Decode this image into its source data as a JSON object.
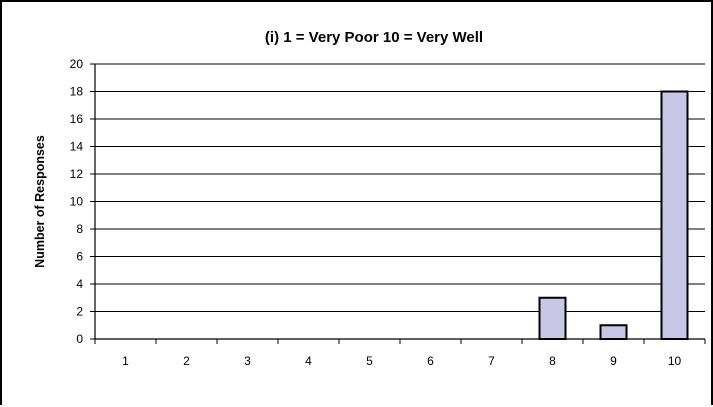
{
  "chart_data": {
    "type": "bar",
    "title": "(i)  1 = Very Poor    10 = Very Well",
    "xlabel": "",
    "ylabel": "Number of Responses",
    "categories": [
      "1",
      "2",
      "3",
      "4",
      "5",
      "6",
      "7",
      "8",
      "9",
      "10"
    ],
    "values": [
      0,
      0,
      0,
      0,
      0,
      0,
      0,
      3,
      1,
      18
    ],
    "ylim": [
      0,
      20
    ],
    "yticks": [
      "0",
      "2",
      "4",
      "6",
      "8",
      "10",
      "12",
      "14",
      "16",
      "18",
      "20"
    ],
    "grid": true,
    "legend": "none",
    "colors": {
      "bar_fill": "#c8c8e6",
      "bar_stroke": "#000000",
      "grid": "#000000"
    }
  }
}
